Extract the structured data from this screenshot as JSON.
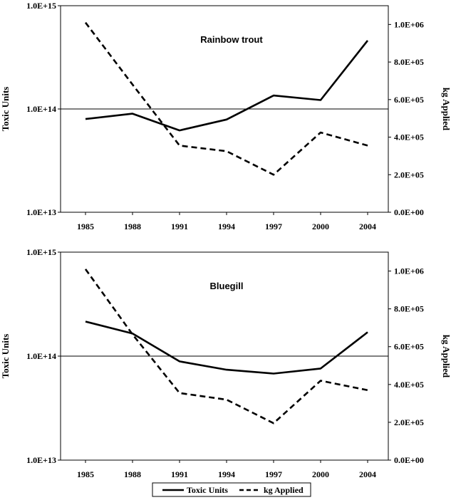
{
  "chart_data": [
    {
      "type": "line",
      "title": "Rainbow trout",
      "categories": [
        "1985",
        "1988",
        "1991",
        "1994",
        "1997",
        "2000",
        "2004"
      ],
      "x": [
        1985,
        1988,
        1991,
        1994,
        1997,
        2000,
        2004
      ],
      "ylabel": "Toxic Units",
      "y2label": "kg Applied",
      "y_scale": "log",
      "ylim": [
        10000000000000.0,
        1000000000000000.0
      ],
      "y_ticks": [
        "1.0E+13",
        "1.0E+14",
        "1.0E+15"
      ],
      "y2lim": [
        0,
        1100000
      ],
      "y2_ticks": [
        "0.0E+00",
        "2.0E+05",
        "4.0E+05",
        "6.0E+05",
        "8.0E+05",
        "1.0E+06"
      ],
      "reference_line_y": 100000000000000.0,
      "grid": false,
      "series": [
        {
          "name": "Toxic Units",
          "axis": "left",
          "style": "solid",
          "values": [
            80000000000000.0,
            90000000000000.0,
            62000000000000.0,
            79000000000000.0,
            135000000000000.0,
            122000000000000.0,
            460000000000000.0
          ]
        },
        {
          "name": "kg Applied",
          "axis": "right",
          "style": "dashed",
          "values": [
            1010000,
            680000,
            355000,
            325000,
            200000,
            425000,
            355000
          ]
        }
      ]
    },
    {
      "type": "line",
      "title": "Bluegill",
      "categories": [
        "1985",
        "1988",
        "1991",
        "1994",
        "1997",
        "2000",
        "2004"
      ],
      "x": [
        1985,
        1988,
        1991,
        1994,
        1997,
        2000,
        2004
      ],
      "ylabel": "Toxic Units",
      "y2label": "kg Applied",
      "y_scale": "log",
      "ylim": [
        10000000000000.0,
        1000000000000000.0
      ],
      "y_ticks": [
        "1.0E+13",
        "1.0E+14",
        "1.0E+15"
      ],
      "y2lim": [
        0,
        1100000
      ],
      "y2_ticks": [
        "0.0E+00",
        "2.0E+05",
        "4.0E+05",
        "6.0E+05",
        "8.0E+05",
        "1.0E+06"
      ],
      "reference_line_y": 100000000000000.0,
      "grid": false,
      "series": [
        {
          "name": "Toxic Units",
          "axis": "left",
          "style": "solid",
          "values": [
            215000000000000.0,
            165000000000000.0,
            89000000000000.0,
            74000000000000.0,
            68000000000000.0,
            76000000000000.0,
            170000000000000.0
          ]
        },
        {
          "name": "kg Applied",
          "axis": "right",
          "style": "dashed",
          "values": [
            1010000,
            665000,
            355000,
            320000,
            195000,
            420000,
            370000
          ]
        }
      ]
    }
  ],
  "legend": {
    "placement": "bottom-center",
    "items": [
      {
        "label": "Toxic Units",
        "style": "solid"
      },
      {
        "label": "kg Applied",
        "style": "dashed"
      }
    ]
  }
}
